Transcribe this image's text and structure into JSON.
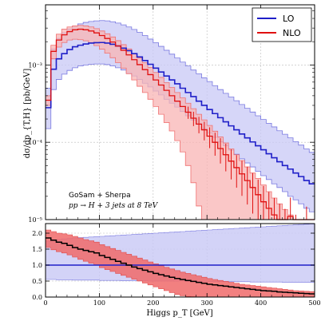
{
  "chart_data": [
    {
      "type": "line",
      "subtype": "step-histogram-with-uncertainty-bands",
      "panel": "main",
      "ylabel": "dσ/dp_{T,H} [pb/GeV]",
      "yscale": "log",
      "xlim": [
        0,
        500
      ],
      "ylim": [
        1e-05,
        0.006
      ],
      "y_tick_labels": [
        "10⁻⁵",
        "10⁻⁴",
        "10⁻³"
      ],
      "y_ticks": [
        1e-05,
        0.0001,
        0.001
      ],
      "grid": true,
      "legend_position": "top-right",
      "annotations": [
        "GoSam + Sherpa",
        "pp → H + 3 jets at 8 TeV"
      ],
      "bin_edges": [
        0,
        10,
        20,
        30,
        40,
        50,
        60,
        70,
        80,
        90,
        100,
        110,
        120,
        130,
        140,
        150,
        160,
        170,
        180,
        190,
        200,
        210,
        220,
        230,
        240,
        250,
        260,
        270,
        280,
        290,
        300,
        310,
        320,
        330,
        340,
        350,
        360,
        370,
        380,
        390,
        400,
        410,
        420,
        430,
        440,
        450,
        460,
        470,
        480,
        490,
        500
      ],
      "series": [
        {
          "name": "LO",
          "color": "#1f1fc8",
          "band_color": "#c8c8f5",
          "band_edge_color": "#7878e0",
          "central": [
            0.00028,
            0.00088,
            0.0012,
            0.0014,
            0.00158,
            0.00172,
            0.0018,
            0.00187,
            0.00192,
            0.00194,
            0.00195,
            0.00192,
            0.00185,
            0.00176,
            0.00165,
            0.00153,
            0.0014,
            0.00127,
            0.00114,
            0.00102,
            0.00091,
            0.00081,
            0.00072,
            0.00064,
            0.00057,
            0.0005,
            0.00044,
            0.00039,
            0.00034,
            0.0003,
            0.000265,
            0.000235,
            0.000208,
            0.000184,
            0.000163,
            0.000145,
            0.000128,
            0.000114,
            0.000101,
            9e-05,
            8e-05,
            7.1e-05,
            6.3e-05,
            5.6e-05,
            5e-05,
            4.5e-05,
            4e-05,
            3.6e-05,
            3.2e-05,
            2.9e-05
          ],
          "upper": [
            0.0005,
            0.0016,
            0.0022,
            0.0026,
            0.0029,
            0.0032,
            0.0034,
            0.00355,
            0.00365,
            0.00372,
            0.00375,
            0.00372,
            0.00362,
            0.00348,
            0.0033,
            0.0031,
            0.00288,
            0.00264,
            0.0024,
            0.00216,
            0.00194,
            0.00174,
            0.00155,
            0.00138,
            0.00123,
            0.00109,
            0.00097,
            0.00086,
            0.00077,
            0.00068,
            0.00061,
            0.00054,
            0.00048,
            0.00043,
            0.000385,
            0.000345,
            0.000308,
            0.000275,
            0.000246,
            0.00022,
            0.000197,
            0.000176,
            0.000158,
            0.000141,
            0.000127,
            0.000114,
            0.000102,
            9.2e-05,
            8.2e-05,
            7.4e-05
          ],
          "lower": [
            0.00015,
            0.00048,
            0.00065,
            0.00076,
            0.00085,
            0.00092,
            0.00097,
            0.001,
            0.00102,
            0.00103,
            0.00103,
            0.00101,
            0.00097,
            0.00092,
            0.00086,
            0.00079,
            0.00072,
            0.00065,
            0.00058,
            0.00052,
            0.00046,
            0.00041,
            0.00036,
            0.00032,
            0.000285,
            0.00025,
            0.00022,
            0.000194,
            0.00017,
            0.00015,
            0.000132,
            0.000116,
            0.000102,
            9e-05,
            7.9e-05,
            7e-05,
            6.1e-05,
            5.4e-05,
            4.8e-05,
            4.2e-05,
            3.7e-05,
            3.3e-05,
            2.9e-05,
            2.6e-05,
            2.3e-05,
            2e-05,
            1.8e-05,
            1.6e-05,
            1.4e-05,
            1.26e-05
          ]
        },
        {
          "name": "NLO",
          "color": "#e01010",
          "band_color": "#f8b4b4",
          "band_edge_color": "#f07070",
          "central": [
            0.00035,
            0.0015,
            0.0021,
            0.00245,
            0.0027,
            0.00285,
            0.0029,
            0.00285,
            0.00275,
            0.0026,
            0.0024,
            0.0022,
            0.00198,
            0.00176,
            0.00155,
            0.00135,
            0.00117,
            0.00101,
            0.00087,
            0.00075,
            0.00064,
            0.00055,
            0.00047,
            0.0004,
            0.00034,
            0.00029,
            0.000245,
            0.000205,
            0.000172,
            0.000145,
            0.00012,
            0.0001,
            8.3e-05,
            6.9e-05,
            5.7e-05,
            4.7e-05,
            3.9e-05,
            3.2e-05,
            2.6e-05,
            2.1e-05,
            1.7e-05,
            1.4e-05,
            1.15e-05,
            9.5e-06,
            8e-06,
            1.1e-05,
            6.5e-06,
            5.5e-06,
            8e-06,
            4e-06
          ],
          "upper": [
            0.0004,
            0.0018,
            0.0025,
            0.0029,
            0.0031,
            0.0032,
            0.00325,
            0.0032,
            0.0031,
            0.00295,
            0.00275,
            0.00253,
            0.0023,
            0.00206,
            0.00183,
            0.00161,
            0.00141,
            0.00123,
            0.00107,
            0.00093,
            0.0008,
            0.00069,
            0.00059,
            0.00051,
            0.00044,
            0.000375,
            0.00032,
            0.000272,
            0.00023,
            0.000195,
            0.000165,
            0.000139,
            0.000117,
            9.8e-05,
            8.2e-05,
            6.9e-05,
            5.8e-05,
            4.8e-05,
            4e-05,
            3.4e-05,
            2.8e-05,
            2.3e-05,
            1.9e-05,
            1.6e-05,
            1.35e-05,
            1.15e-05,
            9.7e-06,
            8.3e-06,
            7.1e-06,
            6e-06
          ],
          "lower": [
            0.0003,
            0.0012,
            0.0017,
            0.00195,
            0.0021,
            0.00215,
            0.00212,
            0.00205,
            0.00193,
            0.00178,
            0.0016,
            0.00142,
            0.00124,
            0.00107,
            0.00091,
            0.00077,
            0.00064,
            0.00053,
            0.00044,
            0.00036,
            0.00029,
            0.00023,
            0.00018,
            0.00014,
            0.000105,
            7.5e-05,
            5e-05,
            3e-05,
            1.5e-05,
            5e-06,
            5e-06,
            5e-06,
            5e-06,
            5e-06,
            5e-06,
            5e-06,
            5e-06,
            5e-06,
            5e-06,
            5e-06,
            5e-06,
            5e-06,
            5e-06,
            5e-06,
            5e-06,
            5e-06,
            5e-06,
            5e-06,
            5e-06,
            5e-06
          ]
        }
      ]
    },
    {
      "type": "line",
      "subtype": "ratio-panel",
      "panel": "ratio",
      "xlabel": "Higgs p_T [GeV]",
      "xlim": [
        0,
        500
      ],
      "ylim": [
        0,
        2.3
      ],
      "x_tick_labels": [
        "0",
        "100",
        "200",
        "300",
        "400",
        "500"
      ],
      "x_ticks": [
        0,
        100,
        200,
        300,
        400,
        500
      ],
      "y_tick_labels": [
        "0.0",
        "0.5",
        "1.0",
        "1.5",
        "2.0"
      ],
      "y_ticks": [
        0.0,
        0.5,
        1.0,
        1.5,
        2.0
      ],
      "grid": true,
      "ratio_bin_edges": [
        0,
        10,
        20,
        30,
        40,
        50,
        60,
        70,
        80,
        90,
        100,
        110,
        120,
        130,
        140,
        150,
        160,
        170,
        180,
        190,
        200,
        210,
        220,
        230,
        240,
        250,
        260,
        270,
        280,
        290,
        300,
        310,
        320,
        330,
        340,
        350,
        360,
        370,
        380,
        390,
        400,
        410,
        420,
        430,
        440,
        450,
        460,
        470,
        480,
        490,
        500
      ],
      "lo_band_upper": [
        1.75,
        1.78,
        1.8,
        1.82,
        1.83,
        1.85,
        1.86,
        1.87,
        1.88,
        1.89,
        1.9,
        1.91,
        1.92,
        1.93,
        1.94,
        1.95,
        1.96,
        1.97,
        1.98,
        1.99,
        2.0,
        2.01,
        2.02,
        2.03,
        2.04,
        2.05,
        2.06,
        2.07,
        2.08,
        2.09,
        2.1,
        2.11,
        2.12,
        2.13,
        2.14,
        2.15,
        2.16,
        2.17,
        2.18,
        2.19,
        2.2,
        2.21,
        2.22,
        2.23,
        2.24,
        2.25,
        2.26,
        2.27,
        2.28,
        2.29
      ],
      "lo_band_lower": [
        0.55,
        0.55,
        0.54,
        0.54,
        0.54,
        0.53,
        0.53,
        0.53,
        0.53,
        0.53,
        0.52,
        0.52,
        0.52,
        0.52,
        0.51,
        0.51,
        0.51,
        0.51,
        0.51,
        0.5,
        0.5,
        0.5,
        0.5,
        0.5,
        0.5,
        0.5,
        0.49,
        0.49,
        0.49,
        0.49,
        0.49,
        0.49,
        0.48,
        0.48,
        0.48,
        0.48,
        0.48,
        0.48,
        0.47,
        0.47,
        0.47,
        0.47,
        0.47,
        0.47,
        0.46,
        0.46,
        0.46,
        0.46,
        0.46,
        0.46
      ],
      "nlo_ratio": [
        1.85,
        1.78,
        1.72,
        1.68,
        1.62,
        1.55,
        1.5,
        1.46,
        1.42,
        1.38,
        1.3,
        1.24,
        1.18,
        1.12,
        1.06,
        1.0,
        0.94,
        0.89,
        0.84,
        0.79,
        0.74,
        0.7,
        0.66,
        0.62,
        0.58,
        0.55,
        0.52,
        0.49,
        0.46,
        0.43,
        0.4,
        0.38,
        0.36,
        0.34,
        0.32,
        0.3,
        0.28,
        0.26,
        0.24,
        0.22,
        0.2,
        0.19,
        0.18,
        0.16,
        0.15,
        0.14,
        0.13,
        0.12,
        0.11,
        0.1
      ],
      "nlo_band_upper": [
        2.1,
        2.05,
        2.0,
        1.98,
        1.95,
        1.9,
        1.85,
        1.8,
        1.76,
        1.72,
        1.64,
        1.58,
        1.52,
        1.46,
        1.4,
        1.34,
        1.28,
        1.22,
        1.16,
        1.1,
        1.04,
        0.98,
        0.93,
        0.88,
        0.83,
        0.78,
        0.74,
        0.7,
        0.66,
        0.62,
        0.58,
        0.55,
        0.52,
        0.49,
        0.46,
        0.43,
        0.4,
        0.38,
        0.36,
        0.34,
        0.32,
        0.3,
        0.28,
        0.26,
        0.24,
        0.22,
        0.2,
        0.19,
        0.18,
        0.17
      ],
      "nlo_band_lower": [
        1.55,
        1.48,
        1.42,
        1.38,
        1.32,
        1.25,
        1.18,
        1.12,
        1.06,
        1.0,
        0.92,
        0.86,
        0.8,
        0.74,
        0.68,
        0.62,
        0.56,
        0.5,
        0.44,
        0.38,
        0.32,
        0.26,
        0.2,
        0.14,
        0.08,
        0.04,
        0.02,
        0.01,
        0.0,
        0.0,
        0.0,
        0.0,
        0.0,
        0.0,
        0.0,
        0.0,
        0.0,
        0.0,
        0.0,
        0.0,
        0.0,
        0.0,
        0.0,
        0.0,
        0.0,
        0.0,
        0.0,
        0.0,
        0.0,
        0.0
      ]
    }
  ]
}
